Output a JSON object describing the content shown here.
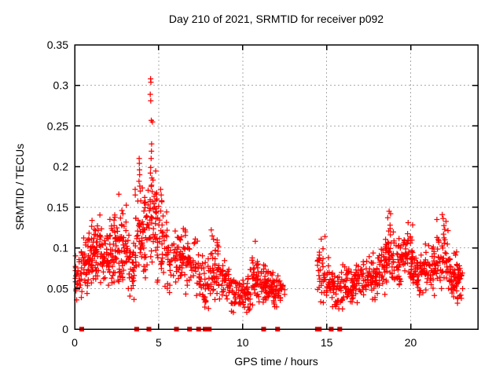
{
  "window": {
    "background": "#ffffff"
  },
  "chart_data": {
    "type": "scatter",
    "title": "Day 210 of 2021, SRMTID for receiver p092",
    "xlabel": "GPS time / hours",
    "ylabel": "SRMTID / TECUs",
    "xlim": [
      0,
      24
    ],
    "ylim": [
      0,
      0.35
    ],
    "xticks": [
      0,
      5,
      10,
      15,
      20
    ],
    "xtick_labels": [
      "0",
      "5",
      "10",
      "15",
      "20"
    ],
    "yticks": [
      0,
      0.05,
      0.1,
      0.15,
      0.2,
      0.25,
      0.3,
      0.35
    ],
    "ytick_labels": [
      "0",
      "0.05",
      "0.1",
      "0.15",
      "0.2",
      "0.25",
      "0.3",
      "0.35"
    ],
    "grid": true,
    "legend_position": "none",
    "axis_color": "#000000",
    "grid_color": "#aaaaaa",
    "marker_color": "#ff0000",
    "seed": 20210729,
    "series": [
      {
        "name": "srmtid",
        "marker": "plus",
        "color": "#ff0000",
        "cluster_envelope": [
          [
            0.0,
            0.35,
            22,
            0.02,
            0.105
          ],
          [
            0.35,
            0.75,
            30,
            0.03,
            0.12
          ],
          [
            0.75,
            1.15,
            40,
            0.04,
            0.135
          ],
          [
            1.15,
            1.65,
            45,
            0.05,
            0.155
          ],
          [
            1.65,
            2.1,
            40,
            0.04,
            0.13
          ],
          [
            2.1,
            2.6,
            45,
            0.05,
            0.15
          ],
          [
            2.6,
            3.1,
            45,
            0.04,
            0.155
          ],
          [
            3.1,
            3.6,
            35,
            0.03,
            0.125
          ],
          [
            3.6,
            4.2,
            55,
            0.05,
            0.185
          ],
          [
            4.2,
            4.9,
            60,
            0.06,
            0.2
          ],
          [
            4.9,
            5.5,
            40,
            0.05,
            0.165
          ],
          [
            5.5,
            6.1,
            35,
            0.04,
            0.13
          ],
          [
            6.1,
            6.6,
            40,
            0.05,
            0.133
          ],
          [
            6.6,
            7.4,
            45,
            0.03,
            0.122
          ],
          [
            7.4,
            8.05,
            40,
            0.02,
            0.105
          ],
          [
            8.05,
            8.6,
            45,
            0.03,
            0.12
          ],
          [
            8.6,
            9.3,
            40,
            0.025,
            0.09
          ],
          [
            9.3,
            9.9,
            35,
            0.015,
            0.065
          ],
          [
            9.9,
            10.45,
            40,
            0.015,
            0.07
          ],
          [
            10.45,
            10.95,
            40,
            0.025,
            0.105
          ],
          [
            10.95,
            11.55,
            45,
            0.025,
            0.085
          ],
          [
            11.55,
            12.1,
            40,
            0.025,
            0.07
          ],
          [
            12.1,
            12.5,
            20,
            0.03,
            0.065
          ],
          [
            14.45,
            14.8,
            25,
            0.03,
            0.112
          ],
          [
            14.8,
            15.35,
            35,
            0.03,
            0.09
          ],
          [
            15.35,
            15.95,
            40,
            0.02,
            0.075
          ],
          [
            15.95,
            16.55,
            40,
            0.025,
            0.08
          ],
          [
            16.55,
            17.25,
            45,
            0.03,
            0.09
          ],
          [
            17.25,
            17.95,
            45,
            0.03,
            0.098
          ],
          [
            17.95,
            18.5,
            40,
            0.04,
            0.11
          ],
          [
            18.5,
            19.1,
            50,
            0.05,
            0.14
          ],
          [
            19.1,
            19.65,
            40,
            0.05,
            0.12
          ],
          [
            19.65,
            20.15,
            45,
            0.05,
            0.133
          ],
          [
            20.15,
            20.85,
            45,
            0.035,
            0.1
          ],
          [
            20.85,
            21.55,
            45,
            0.04,
            0.115
          ],
          [
            21.55,
            22.25,
            50,
            0.04,
            0.138
          ],
          [
            22.25,
            22.75,
            40,
            0.035,
            0.1
          ],
          [
            22.75,
            23.15,
            30,
            0.03,
            0.09
          ]
        ],
        "outlier_points": [
          [
            2.63,
            0.166
          ],
          [
            3.84,
            0.21
          ],
          [
            3.85,
            0.204
          ],
          [
            3.86,
            0.196
          ],
          [
            3.87,
            0.19
          ],
          [
            3.83,
            0.182
          ],
          [
            3.88,
            0.176
          ],
          [
            3.9,
            0.17
          ],
          [
            4.52,
            0.308
          ],
          [
            4.54,
            0.304
          ],
          [
            4.5,
            0.289
          ],
          [
            4.53,
            0.281
          ],
          [
            4.56,
            0.257
          ],
          [
            4.63,
            0.255
          ],
          [
            4.58,
            0.228
          ],
          [
            4.57,
            0.219
          ],
          [
            4.55,
            0.21
          ],
          [
            4.53,
            0.199
          ],
          [
            4.51,
            0.192
          ],
          [
            4.59,
            0.186
          ],
          [
            5.12,
            0.172
          ],
          [
            5.15,
            0.165
          ],
          [
            5.18,
            0.158
          ],
          [
            8.13,
            0.122
          ],
          [
            10.75,
            0.108
          ],
          [
            14.9,
            0.114
          ],
          [
            18.72,
            0.145
          ],
          [
            18.8,
            0.142
          ],
          [
            18.64,
            0.137
          ],
          [
            19.85,
            0.131
          ],
          [
            21.88,
            0.141
          ],
          [
            21.93,
            0.136
          ]
        ]
      },
      {
        "name": "zero-flags",
        "marker": "filled-square",
        "color": "#ff0000",
        "y": 0,
        "x": [
          0.42,
          3.69,
          4.42,
          6.06,
          6.84,
          7.38,
          7.77,
          8.01,
          11.25,
          12.08,
          14.45,
          14.56,
          15.27,
          15.78
        ]
      }
    ]
  }
}
